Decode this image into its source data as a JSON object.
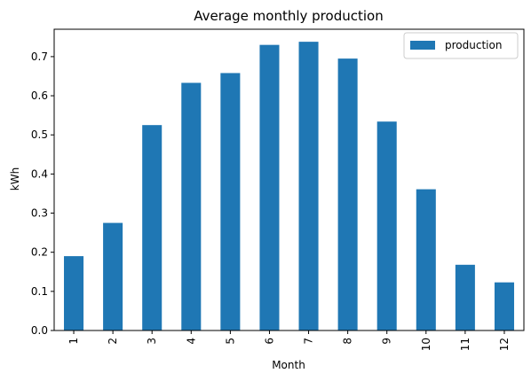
{
  "chart_data": {
    "type": "bar",
    "title": "Average monthly production",
    "xlabel": "Month",
    "ylabel": "kWh",
    "categories": [
      "1",
      "2",
      "3",
      "4",
      "5",
      "6",
      "7",
      "8",
      "9",
      "10",
      "11",
      "12"
    ],
    "series": [
      {
        "name": "production",
        "color": "#1f77b4",
        "values": [
          0.19,
          0.275,
          0.525,
          0.633,
          0.658,
          0.73,
          0.738,
          0.695,
          0.534,
          0.361,
          0.168,
          0.123
        ]
      }
    ],
    "ylim": [
      0,
      0.77
    ],
    "yticks": [
      "0.0",
      "0.1",
      "0.2",
      "0.3",
      "0.4",
      "0.5",
      "0.6",
      "0.7"
    ],
    "ytick_values": [
      0,
      0.1,
      0.2,
      0.3,
      0.4,
      0.5,
      0.6,
      0.7
    ],
    "xtick_rotation": "vertical",
    "grid": false,
    "legend_position": "top-right"
  }
}
